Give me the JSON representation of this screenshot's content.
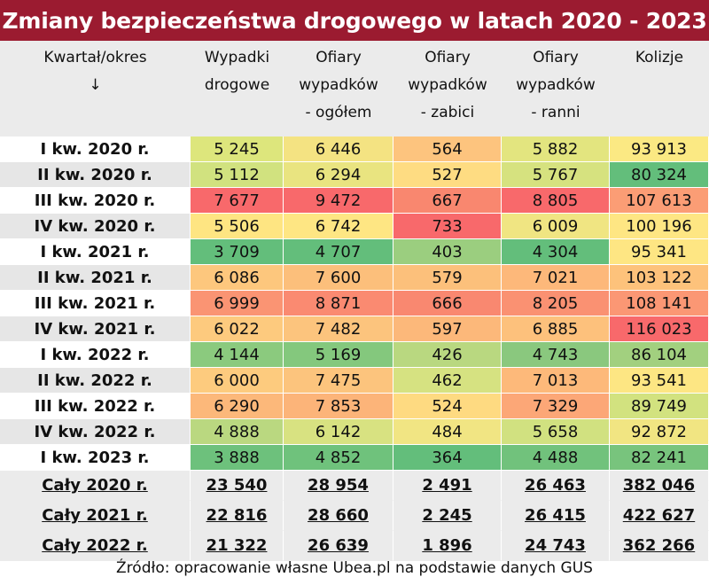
{
  "title": "Zmiany bezpieczeństwa drogowego w latach 2020 - 2023",
  "header": {
    "period": [
      "Kwartał/okres",
      "↓"
    ],
    "columns": [
      [
        "Wypadki",
        "drogowe"
      ],
      [
        "Ofiary",
        "wypadków",
        "- ogółem"
      ],
      [
        "Ofiary",
        "wypadków",
        "- zabici"
      ],
      [
        "Ofiary",
        "wypadków",
        "- ranni"
      ],
      [
        "Kolizje"
      ]
    ]
  },
  "rows": [
    {
      "label": "I kw. 2020 r.",
      "cells": [
        "5 245",
        "6 446",
        "564",
        "5 882",
        "93 913"
      ],
      "colors": [
        "#dde67c",
        "#f4e382",
        "#fdc47e",
        "#e3e57f",
        "#fbe983"
      ]
    },
    {
      "label": "II kw. 2020 r.",
      "cells": [
        "5 112",
        "6 294",
        "527",
        "5 767",
        "80 324"
      ],
      "colors": [
        "#d1e27f",
        "#e9e480",
        "#fedc82",
        "#d6e27f",
        "#63be7b"
      ]
    },
    {
      "label": "III kw. 2020 r.",
      "cells": [
        "7 677",
        "9 472",
        "667",
        "8 805",
        "107 613"
      ],
      "colors": [
        "#f8696b",
        "#f8696b",
        "#f9876f",
        "#f8696b",
        "#fb9d75"
      ]
    },
    {
      "label": "IV kw. 2020 r.",
      "cells": [
        "5 506",
        "6 742",
        "733",
        "6 009",
        "100 196"
      ],
      "colors": [
        "#fee582",
        "#fee683",
        "#f8696b",
        "#f0e582",
        "#fee683"
      ]
    },
    {
      "label": "I kw. 2021 r.",
      "cells": [
        "3 709",
        "4 707",
        "403",
        "4 304",
        "95 341"
      ],
      "colors": [
        "#63be7b",
        "#63be7b",
        "#9bce7f",
        "#63be7b",
        "#fee683"
      ]
    },
    {
      "label": "II kw. 2021 r.",
      "cells": [
        "6 086",
        "7 600",
        "579",
        "7 021",
        "103 122"
      ],
      "colors": [
        "#fdc77d",
        "#fcbf7b",
        "#fcc07b",
        "#fdb87a",
        "#fdc27b"
      ]
    },
    {
      "label": "III kw. 2021 r.",
      "cells": [
        "6 999",
        "8 871",
        "666",
        "8 205",
        "108 141"
      ],
      "colors": [
        "#fa9473",
        "#fa8a71",
        "#f98870",
        "#fa9172",
        "#fb9774"
      ]
    },
    {
      "label": "IV kw. 2021 r.",
      "cells": [
        "6 022",
        "7 482",
        "597",
        "6 885",
        "116 023"
      ],
      "colors": [
        "#fdca7e",
        "#fcc47d",
        "#fcb87a",
        "#fdc17c",
        "#f8696b"
      ]
    },
    {
      "label": "I kw. 2022 r.",
      "cells": [
        "4 144",
        "5 169",
        "426",
        "4 743",
        "86 104"
      ],
      "colors": [
        "#8bca7e",
        "#84c87d",
        "#b9d880",
        "#8ac87e",
        "#a2d07f"
      ]
    },
    {
      "label": "II kw. 2022 r.",
      "cells": [
        "6 000",
        "7 475",
        "462",
        "7 013",
        "93 541"
      ],
      "colors": [
        "#fdcb7e",
        "#fcc47d",
        "#d6e281",
        "#fdb97a",
        "#fde683"
      ]
    },
    {
      "label": "III kw. 2022 r.",
      "cells": [
        "6 290",
        "7 853",
        "524",
        "7 329",
        "89 749"
      ],
      "colors": [
        "#fcb87a",
        "#fcb479",
        "#feda81",
        "#fca777",
        "#d2e27f"
      ]
    },
    {
      "label": "IV kw. 2022 r.",
      "cells": [
        "4 888",
        "6 142",
        "484",
        "5 658",
        "92 872"
      ],
      "colors": [
        "#bad880",
        "#d8e281",
        "#f1e583",
        "#d1e180",
        "#f1e582"
      ]
    },
    {
      "label": "I kw. 2023 r.",
      "cells": [
        "3 888",
        "4 852",
        "364",
        "4 488",
        "82 241"
      ],
      "colors": [
        "#6dc17c",
        "#6fc27c",
        "#63be7b",
        "#71c27c",
        "#78c47d"
      ]
    }
  ],
  "totals": [
    {
      "label": "Cały 2020 r.",
      "cells": [
        "23 540",
        "28 954",
        "2 491",
        "26 463",
        "382 046"
      ]
    },
    {
      "label": "Cały 2021 r.",
      "cells": [
        "22 816",
        "28 660",
        "2 245",
        "26 415",
        "422 627"
      ]
    },
    {
      "label": "Cały 2022 r.",
      "cells": [
        "21 322",
        "26 639",
        "1 896",
        "24 743",
        "362 266"
      ]
    }
  ],
  "source": "Źródło: opracowanie własne Ubea.pl na podstawie danych GUS"
}
